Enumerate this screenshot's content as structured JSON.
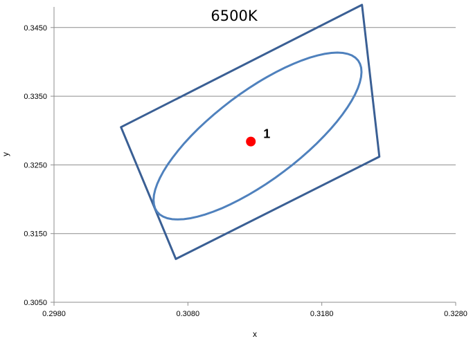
{
  "chart_data": {
    "type": "scatter",
    "title": "6500K",
    "xlabel": "x",
    "ylabel": "y",
    "xlim": [
      0.298,
      0.328
    ],
    "ylim": [
      0.305,
      0.348
    ],
    "x_ticks": [
      "0.2980",
      "0.3080",
      "0.3180",
      "0.3280"
    ],
    "x_tick_values": [
      0.298,
      0.308,
      0.318,
      0.328
    ],
    "y_ticks": [
      "0.3050",
      "0.3150",
      "0.3250",
      "0.3350",
      "0.3450"
    ],
    "y_tick_values": [
      0.305,
      0.315,
      0.325,
      0.335,
      0.345
    ],
    "grid": "horizontal",
    "outline_color": "#3a5f94",
    "ellipse_color": "#4f81bd",
    "point_color": "#ff0000",
    "quadrangle": {
      "name": "",
      "points": [
        [
          0.303,
          0.3305
        ],
        [
          0.321,
          0.3483
        ],
        [
          0.3223,
          0.3262
        ],
        [
          0.3071,
          0.3113
        ]
      ]
    },
    "ellipse": {
      "name": "",
      "center": [
        0.3132,
        0.3292
      ],
      "semi_major": 0.0094,
      "semi_minor": 0.0033,
      "angle_deg": 37
    },
    "points": [
      {
        "x": 0.3127,
        "y": 0.3284,
        "label": "1"
      }
    ]
  }
}
